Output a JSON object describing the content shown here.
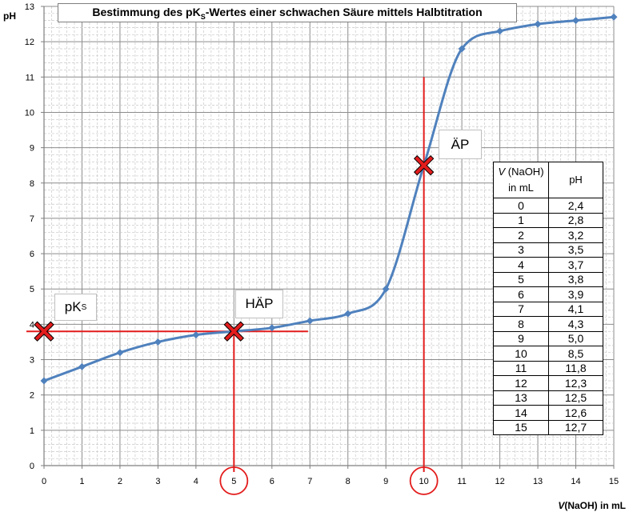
{
  "chart_data": {
    "type": "line",
    "title": {
      "pre": "Bestimmung des pK",
      "sub": "S",
      "post": "-Wertes einer schwachen Säure mittels Halbtitration"
    },
    "xlabel": {
      "var": "V",
      "rest": "(NaOH) in mL"
    },
    "ylabel": "pH",
    "xlim": [
      0,
      15
    ],
    "ylim": [
      0,
      13
    ],
    "x_ticks": [
      0,
      1,
      2,
      3,
      4,
      5,
      6,
      7,
      8,
      9,
      10,
      11,
      12,
      13,
      14,
      15
    ],
    "y_ticks": [
      0,
      1,
      2,
      3,
      4,
      5,
      6,
      7,
      8,
      9,
      10,
      11,
      12,
      13
    ],
    "grid": true,
    "series": [
      {
        "x": [
          0,
          1,
          2,
          3,
          4,
          5,
          6,
          7,
          8,
          9,
          10,
          11,
          12,
          13,
          14,
          15
        ],
        "values": [
          2.4,
          2.8,
          3.2,
          3.5,
          3.7,
          3.8,
          3.9,
          4.1,
          4.3,
          5.0,
          8.5,
          11.8,
          12.3,
          12.5,
          12.6,
          12.7
        ],
        "color": "#4f81bd"
      }
    ],
    "annotations": {
      "pks": {
        "label": "pK",
        "sub": "S",
        "x": 0,
        "y": 3.8
      },
      "haep": {
        "label": "HÄP",
        "x": 5,
        "y": 3.8
      },
      "aep": {
        "label": "ÄP",
        "x": 10,
        "y": 8.5
      },
      "circled_x_ticks": [
        5,
        10
      ],
      "guide_color": "#e31c1c",
      "marker_color": "#e31c1c"
    },
    "table": {
      "header": {
        "col1_var": "V",
        "col1_rest": " (NaOH)",
        "col1_unit": "in mL",
        "col2": "pH"
      },
      "rows": [
        [
          "0",
          "2,4"
        ],
        [
          "1",
          "2,8"
        ],
        [
          "2",
          "3,2"
        ],
        [
          "3",
          "3,5"
        ],
        [
          "4",
          "3,7"
        ],
        [
          "5",
          "3,8"
        ],
        [
          "6",
          "3,9"
        ],
        [
          "7",
          "4,1"
        ],
        [
          "8",
          "4,3"
        ],
        [
          "9",
          "5,0"
        ],
        [
          "10",
          "8,5"
        ],
        [
          "11",
          "11,8"
        ],
        [
          "12",
          "12,3"
        ],
        [
          "13",
          "12,5"
        ],
        [
          "14",
          "12,6"
        ],
        [
          "15",
          "12,7"
        ]
      ]
    }
  }
}
